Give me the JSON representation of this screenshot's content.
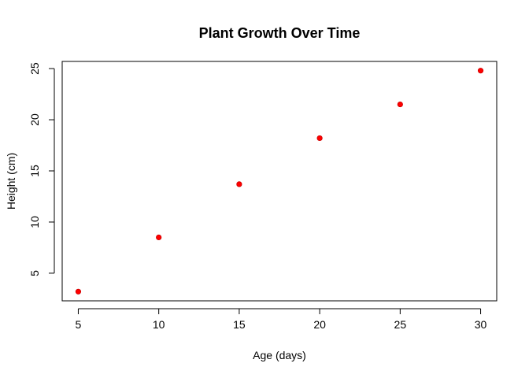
{
  "chart_data": {
    "type": "scatter",
    "title": "Plant Growth Over Time",
    "xlabel": "Age (days)",
    "ylabel": "Height (cm)",
    "x": [
      5,
      10,
      15,
      20,
      25,
      30
    ],
    "y": [
      3.2,
      8.5,
      13.7,
      18.2,
      21.5,
      24.8
    ],
    "xlim": [
      4.0,
      31.0
    ],
    "ylim": [
      2.3,
      25.7
    ],
    "xticks": [
      5,
      10,
      15,
      20,
      25,
      30
    ],
    "yticks": [
      5,
      10,
      15,
      20,
      25
    ],
    "xtick_labels": [
      "5",
      "10",
      "15",
      "20",
      "25",
      "30"
    ],
    "ytick_labels": [
      "5",
      "10",
      "15",
      "20",
      "25"
    ],
    "grid": false,
    "point_color": "#ff0000",
    "point_stroke": "#cc0000"
  }
}
